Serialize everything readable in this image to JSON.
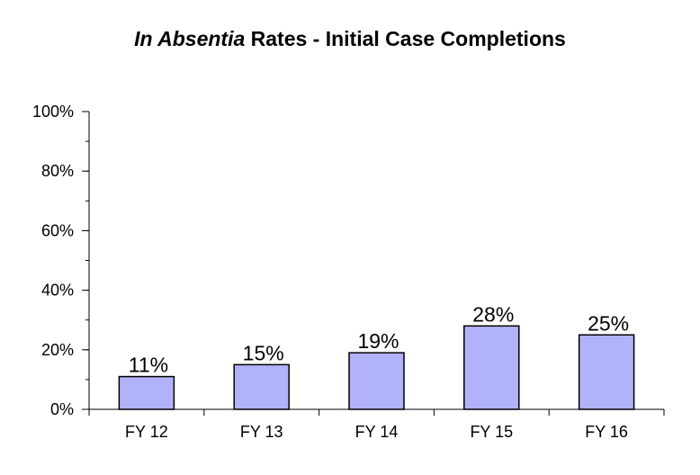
{
  "chart_data": {
    "type": "bar",
    "title_italic": "In Absentia",
    "title_rest": " Rates - Initial Case Completions",
    "categories": [
      "FY 12",
      "FY 13",
      "FY 14",
      "FY 15",
      "FY 16"
    ],
    "values": [
      11,
      15,
      19,
      28,
      25
    ],
    "data_labels": [
      "11%",
      "15%",
      "19%",
      "28%",
      "25%"
    ],
    "ylim": [
      0,
      100
    ],
    "yticks": [
      0,
      20,
      40,
      60,
      80,
      100
    ],
    "ytick_labels": [
      "0%",
      "20%",
      "40%",
      "60%",
      "80%",
      "100%"
    ],
    "xlabel": "",
    "ylabel": "",
    "grid": false,
    "legend": "none",
    "colors": {
      "bar_fill": "#b2b2fb",
      "bar_stroke": "#000000",
      "axis": "#000000"
    }
  }
}
